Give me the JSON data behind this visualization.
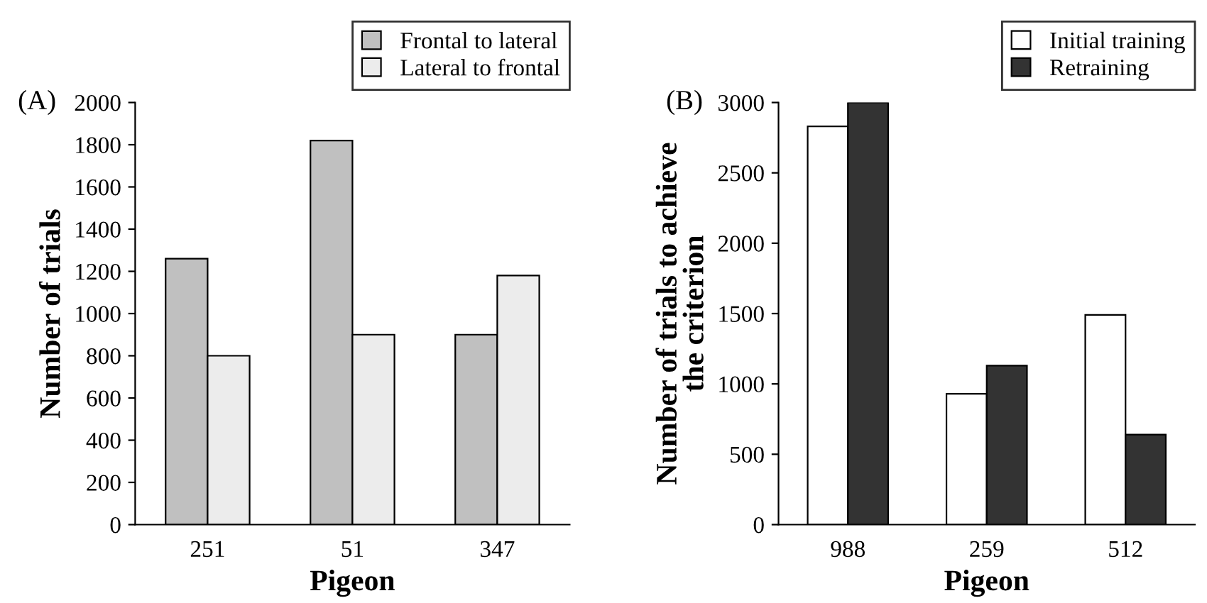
{
  "chart_data": [
    {
      "type": "bar",
      "title": "(A)",
      "xlabel": "Pigeon",
      "ylabel": "Number of trials",
      "categories": [
        "251",
        "51",
        "347"
      ],
      "series": [
        {
          "name": "Frontal to lateral",
          "color": "#c0c0c0",
          "values": [
            1260,
            1820,
            900
          ]
        },
        {
          "name": "Lateral to frontal",
          "color": "#ececec",
          "values": [
            800,
            900,
            1180
          ]
        }
      ],
      "ylim": [
        0,
        2000
      ],
      "yticks": [
        0,
        200,
        400,
        600,
        800,
        1000,
        1200,
        1400,
        1600,
        1800,
        2000
      ],
      "grid": false,
      "legend": "top right"
    },
    {
      "type": "bar",
      "title": "(B)",
      "xlabel": "Pigeon",
      "ylabel": "Number of trials to achieve\nthe criterion",
      "categories": [
        "988",
        "259",
        "512"
      ],
      "series": [
        {
          "name": "Initial training",
          "color": "#ffffff",
          "values": [
            2830,
            930,
            1490
          ]
        },
        {
          "name": "Retraining",
          "color": "#333333",
          "values": [
            3000,
            1130,
            640
          ]
        }
      ],
      "ylim": [
        0,
        3000
      ],
      "yticks": [
        0,
        500,
        1000,
        1500,
        2000,
        2500,
        3000
      ],
      "grid": false,
      "legend": "top right"
    }
  ]
}
